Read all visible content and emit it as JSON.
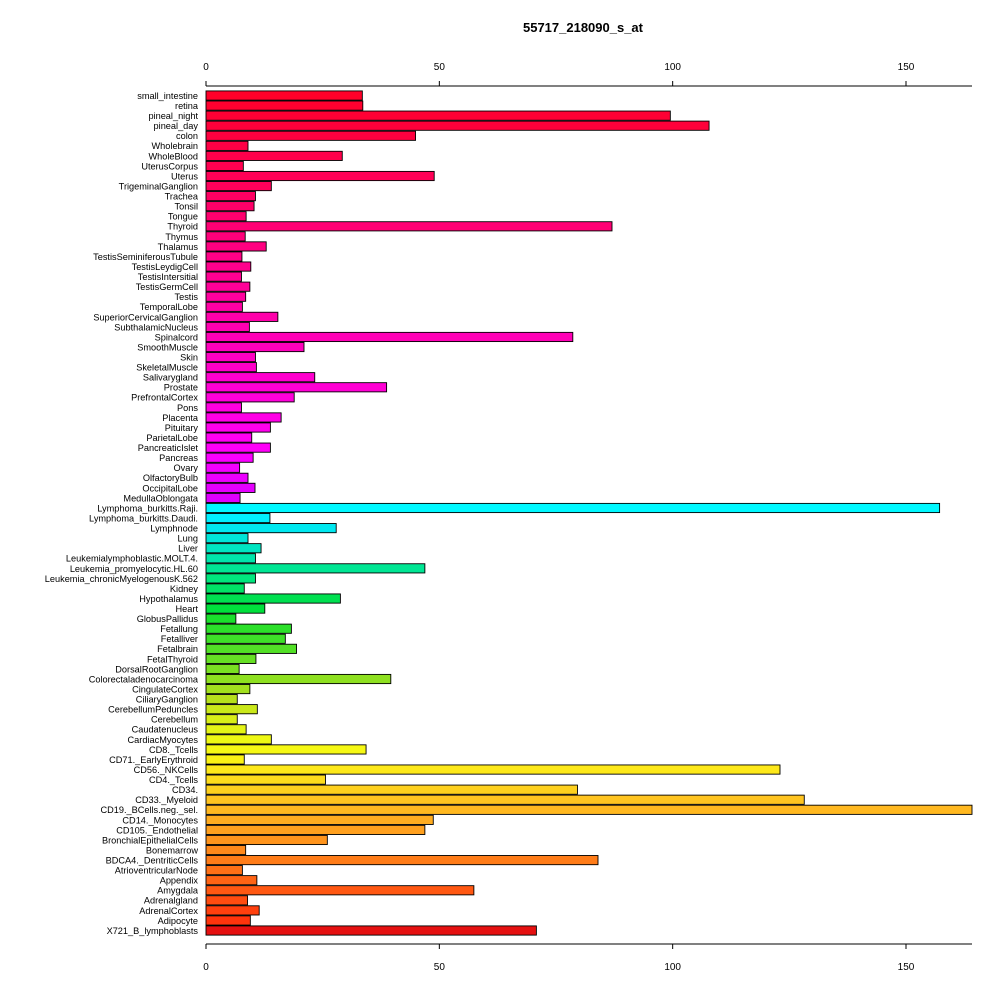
{
  "chart_data": {
    "type": "bar",
    "orientation": "horizontal",
    "title": "55717_218090_s_at",
    "xlabel": "",
    "ylabel": "",
    "xlim": [
      0,
      165
    ],
    "x_ticks": [
      "0",
      "50",
      "100",
      "150"
    ],
    "grid": false,
    "categories": [
      "small_intestine",
      "retina",
      "pineal_night",
      "pineal_day",
      "colon",
      "Wholebrain",
      "WholeBlood",
      "UterusCorpus",
      "Uterus",
      "TrigeminalGanglion",
      "Trachea",
      "Tonsil",
      "Tongue",
      "Thyroid",
      "Thymus",
      "Thalamus",
      "TestisSeminiferousTubule",
      "TestisLeydigCell",
      "TestisIntersitial",
      "TestisGermCell",
      "Testis",
      "TemporalLobe",
      "SuperiorCervicalGanglion",
      "SubthalamicNucleus",
      "Spinalcord",
      "SmoothMuscle",
      "Skin",
      "SkeletalMuscle",
      "Salivarygland",
      "Prostate",
      "PrefrontalCortex",
      "Pons",
      "Placenta",
      "Pituitary",
      "ParietalLobe",
      "PancreaticIslet",
      "Pancreas",
      "Ovary",
      "OlfactoryBulb",
      "OccipitalLobe",
      "MedullaOblongata",
      "Lymphoma_burkitts.Raji.",
      "Lymphoma_burkitts.Daudi.",
      "Lymphnode",
      "Lung",
      "Liver",
      "Leukemialymphoblastic.MOLT.4.",
      "Leukemia_promyelocytic.HL.60",
      "Leukemia_chronicMyelogenousK.562",
      "Kidney",
      "Hypothalamus",
      "Heart",
      "GlobusPallidus",
      "Fetallung",
      "Fetalliver",
      "Fetalbrain",
      "FetalThyroid",
      "DorsalRootGanglion",
      "Colorectaladenocarcinoma",
      "CingulateCortex",
      "CiliaryGanglion",
      "CerebellumPeduncles",
      "Cerebellum",
      "Caudatenucleus",
      "CardiacMyocytes",
      "CD8._Tcells",
      "CD71._EarlyErythroid",
      "CD56._NKCells",
      "CD4._Tcells",
      "CD34.",
      "CD33._Myeloid",
      "CD19._BCells.neg._sel.",
      "CD14._Monocytes",
      "CD105._Endothelial",
      "BronchialEpithelialCells",
      "Bonemarrow",
      "BDCA4._DentriticCells",
      "AtrioventricularNode",
      "Appendix",
      "Amygdala",
      "Adrenalgland",
      "AdrenalCortex",
      "Adipocyte",
      "X721_B_lymphoblasts"
    ],
    "values": [
      33.5,
      33.6,
      99.5,
      107.8,
      44.9,
      9.0,
      29.2,
      8.0,
      48.9,
      14.0,
      10.6,
      10.3,
      8.6,
      87.0,
      8.4,
      12.9,
      7.7,
      9.6,
      7.6,
      9.4,
      8.5,
      7.8,
      15.4,
      9.3,
      78.6,
      21.0,
      10.6,
      10.8,
      23.3,
      38.7,
      18.9,
      7.6,
      16.1,
      13.8,
      9.8,
      13.8,
      10.1,
      7.2,
      9.0,
      10.5,
      7.3,
      157.2,
      13.7,
      27.9,
      9.0,
      11.8,
      10.6,
      46.9,
      10.6,
      8.2,
      28.8,
      12.6,
      6.4,
      18.3,
      17.0,
      19.4,
      10.7,
      7.1,
      39.6,
      9.4,
      6.7,
      11.0,
      6.7,
      8.6,
      14.0,
      34.3,
      8.2,
      123.0,
      25.6,
      79.6,
      128.2,
      164.5,
      48.7,
      46.9,
      26.0,
      8.5,
      84.0,
      7.8,
      10.9,
      57.4,
      8.9,
      11.4,
      9.5,
      70.8
    ],
    "colors": [
      "#ff0029",
      "#ff002f",
      "#ff0034",
      "#ff003a",
      "#ff003f",
      "#ff0045",
      "#ff004b",
      "#ff0050",
      "#ff0056",
      "#ff005b",
      "#ff0062",
      "#ff0068",
      "#ff006e",
      "#ff0074",
      "#ff007a",
      "#ff0080",
      "#ff0086",
      "#ff008c",
      "#ff0092",
      "#ff0098",
      "#ff009e",
      "#ff00a4",
      "#ff00aa",
      "#ff00b0",
      "#ff00b6",
      "#ff00bc",
      "#ff00c2",
      "#ff00c8",
      "#ff00ce",
      "#ff00d4",
      "#ff00da",
      "#ff00e0",
      "#ff00e6",
      "#ff00ec",
      "#ff00f2",
      "#ff00f8",
      "#fa00ff",
      "#f300ff",
      "#ec00ff",
      "#e500ff",
      "#de00ff",
      "#00f8ff",
      "#00f0ff",
      "#00e8f0",
      "#00e5d9",
      "#00e5c2",
      "#00e5ab",
      "#00e694",
      "#00e67d",
      "#00e366",
      "#00e050",
      "#00e03c",
      "#1ae02c",
      "#2ce02a",
      "#3ee028",
      "#52e026",
      "#66e024",
      "#7ae022",
      "#8ee020",
      "#a2e01e",
      "#b6e01c",
      "#cae81a",
      "#d8ee18",
      "#e4f416",
      "#eef814",
      "#f6f814",
      "#faf214",
      "#fde81a",
      "#fddc1c",
      "#fdd01e",
      "#ffc420",
      "#ffb820",
      "#ffac20",
      "#ffa01e",
      "#ff941c",
      "#ff881a",
      "#ff7c18",
      "#ff7016",
      "#ff6414",
      "#ff5812",
      "#ff4c10",
      "#ff400e",
      "#ff340c",
      "#e51010"
    ]
  }
}
